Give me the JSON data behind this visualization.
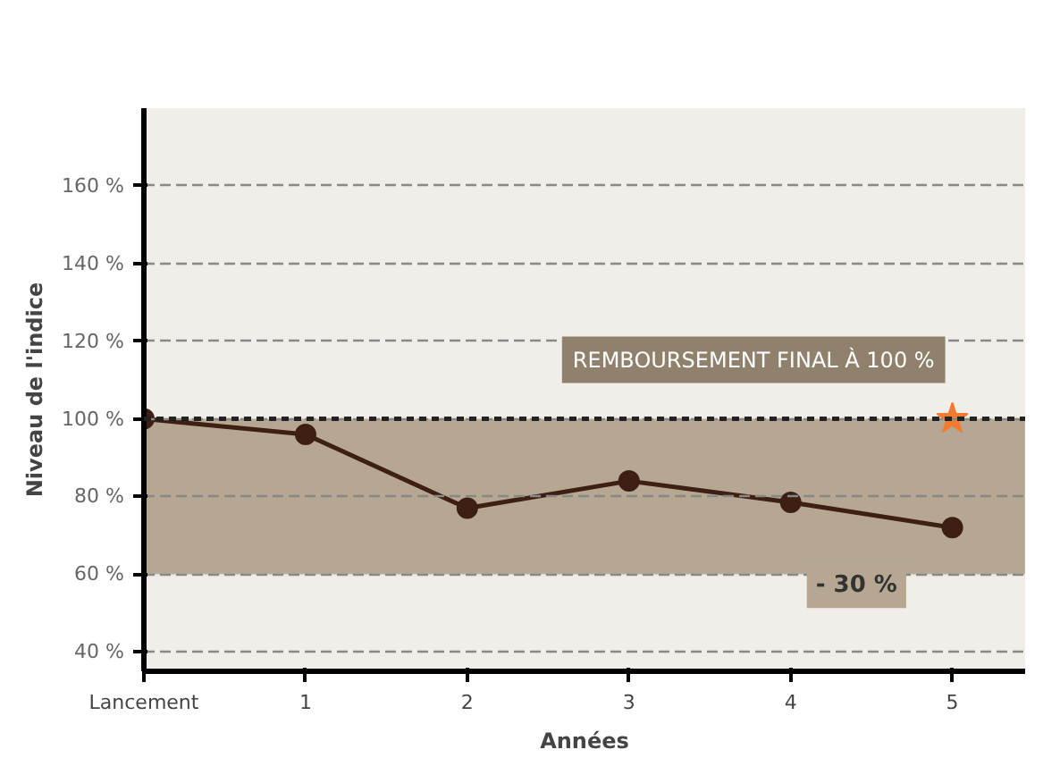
{
  "chart_data": {
    "type": "line",
    "ylabel": "Niveau de l'indice",
    "xlabel": "Années",
    "categories": [
      "Lancement",
      "1",
      "2",
      "3",
      "4",
      "5"
    ],
    "series": [
      {
        "color": "#3d1f14",
        "values": [
          100,
          96,
          77,
          84,
          78.5,
          72
        ],
        "marker": "circle"
      },
      {
        "type": "scatter",
        "color": "#f47a30",
        "marker": "star",
        "values": [
          null,
          null,
          null,
          null,
          null,
          100
        ]
      }
    ],
    "ylim": [
      35,
      180
    ],
    "yticks": [
      {
        "value": 40,
        "label": "40 %"
      },
      {
        "value": 60,
        "label": "60 %"
      },
      {
        "value": 80,
        "label": "80 %"
      },
      {
        "value": 100,
        "label": "100 %"
      },
      {
        "value": 120,
        "label": "120 %"
      },
      {
        "value": 140,
        "label": "140 %"
      },
      {
        "value": 160,
        "label": "160 %"
      }
    ],
    "grid": "y",
    "ref_lines": [
      {
        "axis": "y",
        "value": 100,
        "color": "#222222",
        "line_style": "dotted"
      }
    ],
    "bands": [
      {
        "axis": "y",
        "from": 60,
        "to": 100,
        "color": "#b5a792"
      }
    ],
    "annotations": [
      {
        "text": "REMBOURSEMENT FINAL À 100 %",
        "x": "5",
        "y": 100
      },
      "- 30 %"
    ]
  }
}
